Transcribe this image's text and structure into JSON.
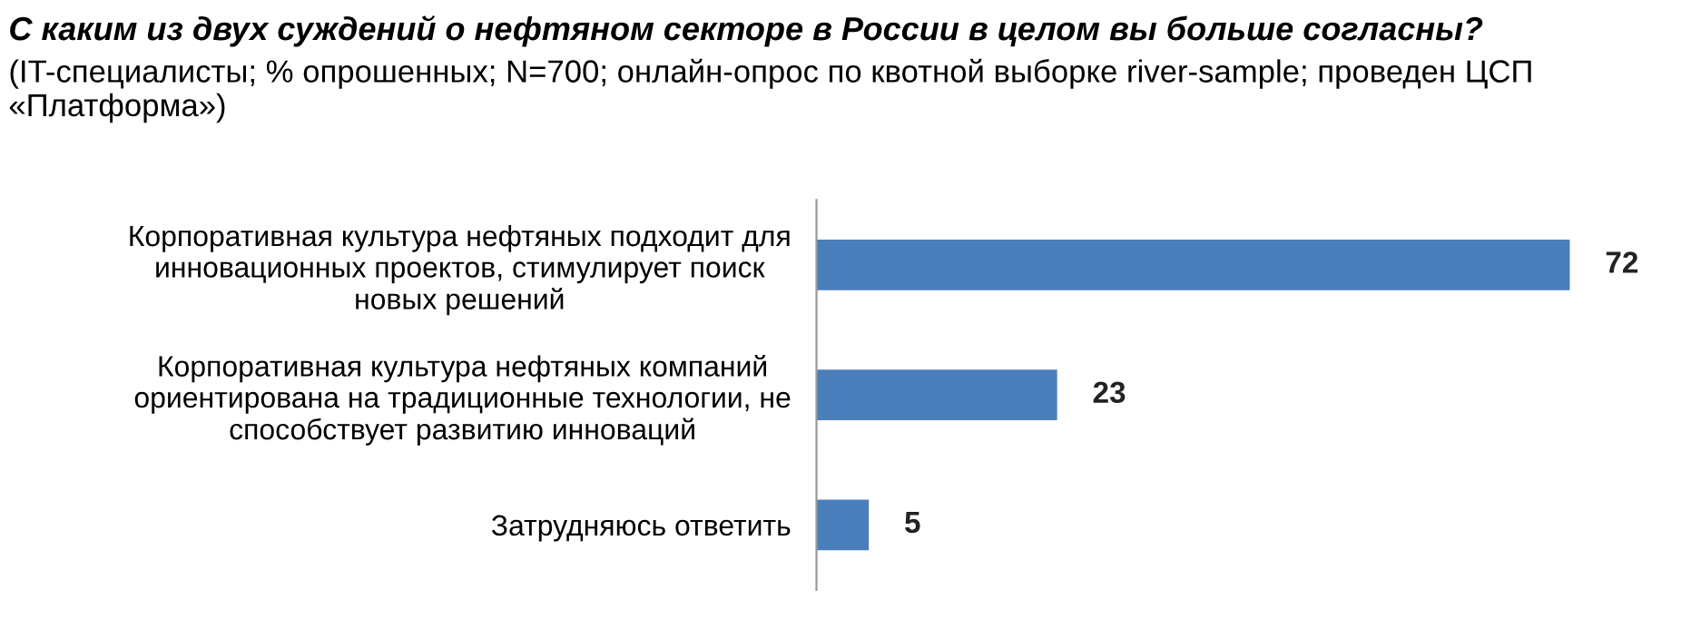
{
  "chart_data": {
    "type": "bar",
    "orientation": "horizontal",
    "title": "С каким из двух суждений о нефтяном секторе в России в целом вы больше согласны?",
    "subtitle": "(IT-специалисты; % опрошенных; N=700; онлайн-опрос по квотной выборке river-sample; проведен ЦСП «Платформа»)",
    "categories": [
      "Корпоративная культура нефтяных подходит для\nинновационных проектов, стимулирует поиск\nновых решений",
      "Корпоративная культура нефтяных компаний\nориентирована на традиционные технологии, не\nспособствует развитию инноваций",
      "Затрудняюсь ответить"
    ],
    "values": [
      72,
      23,
      5
    ],
    "color": "#4a7ebb",
    "data_labels": true,
    "grid": false,
    "legend": false
  }
}
